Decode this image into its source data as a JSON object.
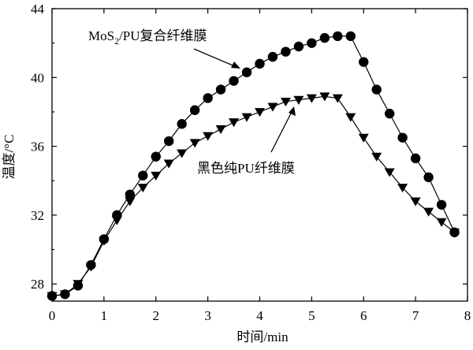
{
  "chart_data": {
    "type": "line",
    "title": "",
    "xlabel": "时间/min",
    "ylabel": "温度/°C",
    "xlim": [
      0,
      8
    ],
    "ylim": [
      27,
      44
    ],
    "x_ticks": [
      0,
      1,
      2,
      3,
      4,
      5,
      6,
      7,
      8
    ],
    "y_ticks": [
      28,
      32,
      36,
      40,
      44
    ],
    "grid": false,
    "series": [
      {
        "name": "MoS2/PU复合纤维膜",
        "marker": "circle",
        "color": "#000000",
        "x": [
          0,
          0.25,
          0.5,
          0.75,
          1.0,
          1.25,
          1.5,
          1.75,
          2.0,
          2.25,
          2.5,
          2.75,
          3.0,
          3.25,
          3.5,
          3.75,
          4.0,
          4.25,
          4.5,
          4.75,
          5.0,
          5.25,
          5.5,
          5.75,
          6.0,
          6.25,
          6.5,
          6.75,
          7.0,
          7.25,
          7.5,
          7.75
        ],
        "y": [
          27.3,
          27.4,
          27.9,
          29.1,
          30.6,
          32.0,
          33.2,
          34.3,
          35.4,
          36.3,
          37.3,
          38.1,
          38.8,
          39.3,
          39.8,
          40.3,
          40.8,
          41.2,
          41.5,
          41.8,
          42.0,
          42.3,
          42.4,
          42.4,
          40.9,
          39.3,
          37.9,
          36.5,
          35.3,
          34.2,
          32.6,
          31.0
        ]
      },
      {
        "name": "黑色纯PU纤维膜",
        "marker": "triangle-down",
        "color": "#000000",
        "x": [
          0,
          0.25,
          0.5,
          0.75,
          1.0,
          1.25,
          1.5,
          1.75,
          2.0,
          2.25,
          2.5,
          2.75,
          3.0,
          3.25,
          3.5,
          3.75,
          4.0,
          4.25,
          4.5,
          4.75,
          5.0,
          5.25,
          5.5,
          5.75,
          6.0,
          6.25,
          6.5,
          6.75,
          7.0,
          7.25,
          7.5,
          7.75
        ],
        "y": [
          27.3,
          27.4,
          28.0,
          29.0,
          30.5,
          31.7,
          32.8,
          33.6,
          34.3,
          35.0,
          35.6,
          36.2,
          36.6,
          37.0,
          37.4,
          37.7,
          38.0,
          38.3,
          38.6,
          38.7,
          38.8,
          38.9,
          38.8,
          37.7,
          36.5,
          35.4,
          34.5,
          33.6,
          32.8,
          32.2,
          31.6,
          31.0
        ]
      }
    ],
    "annotations": [
      {
        "text_main": "MoS",
        "text_sub": "2",
        "text_rest": "/PU复合纤维膜",
        "series_index": 0
      },
      {
        "text_main": "黑色纯PU纤维膜",
        "text_sub": "",
        "text_rest": "",
        "series_index": 1
      }
    ]
  }
}
